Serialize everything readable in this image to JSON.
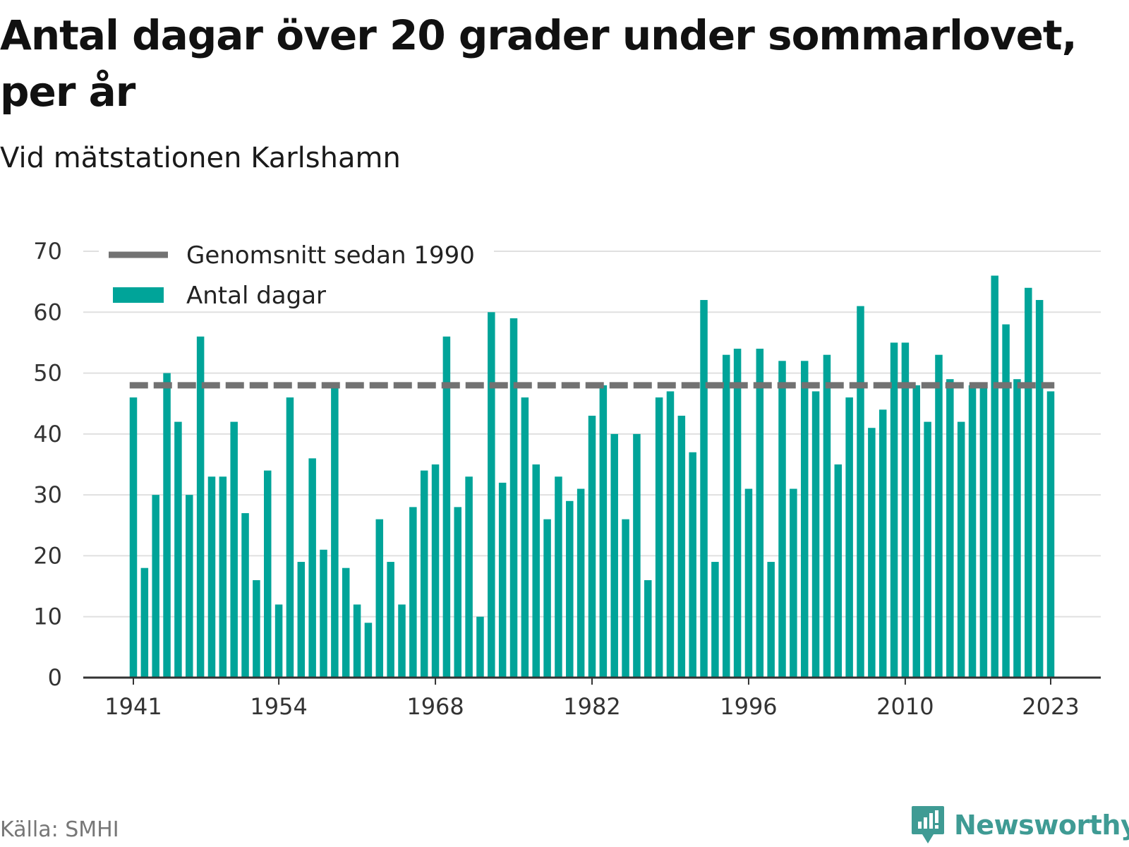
{
  "header": {
    "title": "Antal dagar över 20 grader under sommarlovet, per år",
    "subtitle": "Vid mätstationen Karlshamn"
  },
  "footer": {
    "source": "Källa: SMHI",
    "brand": "Newsworthy"
  },
  "colors": {
    "bar": "#00a499",
    "average_line": "#727272",
    "grid": "#e0e0e0",
    "axis": "#333333",
    "brand": "#3f9b94"
  },
  "chart_data": {
    "type": "bar",
    "x": [
      1941,
      1942,
      1943,
      1944,
      1945,
      1946,
      1947,
      1948,
      1949,
      1950,
      1951,
      1952,
      1953,
      1954,
      1955,
      1956,
      1957,
      1958,
      1959,
      1960,
      1961,
      1962,
      1963,
      1964,
      1965,
      1966,
      1967,
      1968,
      1969,
      1970,
      1971,
      1972,
      1973,
      1974,
      1975,
      1976,
      1977,
      1978,
      1979,
      1980,
      1981,
      1982,
      1983,
      1984,
      1985,
      1986,
      1987,
      1988,
      1989,
      1990,
      1991,
      1992,
      1993,
      1994,
      1995,
      1996,
      1997,
      1998,
      1999,
      2000,
      2001,
      2002,
      2003,
      2004,
      2005,
      2006,
      2007,
      2008,
      2009,
      2010,
      2011,
      2012,
      2013,
      2014,
      2015,
      2016,
      2017,
      2018,
      2019,
      2020,
      2021,
      2022,
      2023
    ],
    "series": [
      {
        "name": "Antal dagar",
        "type": "bar",
        "values": [
          46,
          18,
          30,
          50,
          42,
          30,
          56,
          33,
          33,
          42,
          27,
          16,
          34,
          12,
          46,
          19,
          36,
          21,
          48,
          18,
          12,
          9,
          26,
          19,
          12,
          28,
          34,
          35,
          56,
          28,
          33,
          10,
          60,
          32,
          59,
          46,
          35,
          26,
          33,
          29,
          31,
          43,
          48,
          40,
          26,
          40,
          16,
          46,
          47,
          43,
          37,
          62,
          19,
          53,
          54,
          31,
          54,
          19,
          52,
          31,
          52,
          47,
          53,
          35,
          46,
          61,
          41,
          44,
          55,
          55,
          48,
          42,
          53,
          49,
          42,
          48,
          48,
          66,
          58,
          49,
          64,
          62,
          47
        ]
      },
      {
        "name": "Genomsnitt sedan 1990",
        "type": "line",
        "value": 48
      }
    ],
    "x_ticks": [
      "1941",
      "1954",
      "1968",
      "1982",
      "1996",
      "2010",
      "2023"
    ],
    "y_ticks": [
      "0",
      "10",
      "20",
      "30",
      "40",
      "50",
      "60",
      "70"
    ],
    "ylim": [
      0,
      70
    ],
    "grid": true,
    "legend_position": "top-left"
  }
}
